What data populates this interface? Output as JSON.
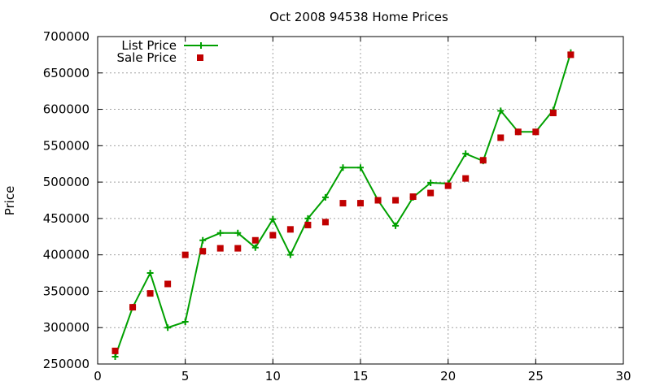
{
  "colors": {
    "list": "#00a000",
    "sale": "#c00000"
  },
  "chart_data": {
    "type": "line",
    "title": "Oct 2008 94538 Home Prices",
    "xlabel": "",
    "ylabel": "Price",
    "xlim": [
      0,
      30
    ],
    "ylim": [
      250000,
      700000
    ],
    "xticks": [
      0,
      5,
      10,
      15,
      20,
      25,
      30
    ],
    "yticks": [
      250000,
      300000,
      350000,
      400000,
      450000,
      500000,
      550000,
      600000,
      650000,
      700000
    ],
    "grid": true,
    "legend_position": "top-left",
    "series": [
      {
        "name": "List Price",
        "style": "line-plus",
        "x": [
          1,
          2,
          3,
          4,
          5,
          6,
          7,
          8,
          9,
          10,
          11,
          12,
          13,
          14,
          15,
          16,
          17,
          18,
          19,
          20,
          21,
          22,
          23,
          24,
          25,
          26,
          27
        ],
        "y": [
          260000,
          328000,
          375000,
          300000,
          308000,
          420000,
          430000,
          430000,
          410000,
          449000,
          400000,
          450000,
          479000,
          520000,
          520000,
          475000,
          440000,
          479000,
          499000,
          498000,
          539000,
          529000,
          598000,
          569000,
          569000,
          599000,
          678000
        ]
      },
      {
        "name": "Sale Price",
        "style": "square",
        "x": [
          1,
          2,
          3,
          4,
          5,
          6,
          7,
          8,
          9,
          10,
          11,
          12,
          13,
          14,
          15,
          16,
          17,
          18,
          19,
          20,
          21,
          22,
          23,
          24,
          25,
          26,
          27
        ],
        "y": [
          268000,
          328000,
          347000,
          360000,
          400000,
          405000,
          409000,
          409000,
          420000,
          427000,
          435000,
          441000,
          445000,
          471000,
          471000,
          475000,
          475000,
          480000,
          485000,
          495000,
          505000,
          530000,
          561000,
          569000,
          569000,
          595000,
          675000
        ]
      }
    ]
  }
}
